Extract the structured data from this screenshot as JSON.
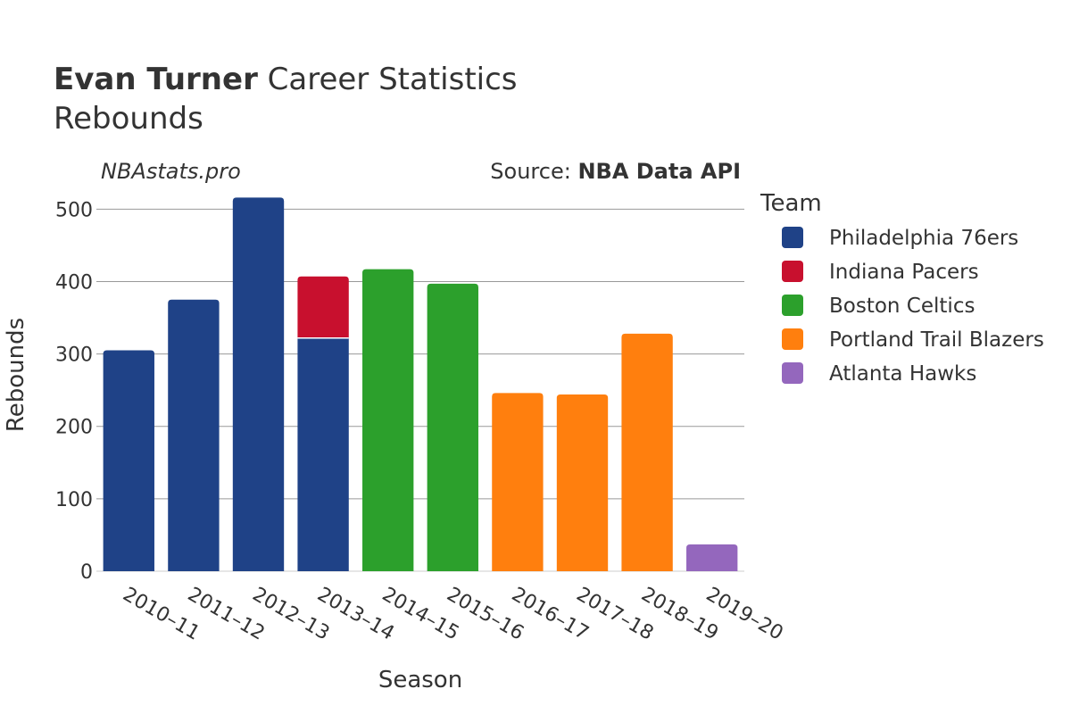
{
  "header": {
    "title_bold": "Evan Turner",
    "title_rest": " Career Statistics",
    "subtitle": "Rebounds",
    "watermark": "NBAstats.pro",
    "source_prefix": "Source: ",
    "source_name": "NBA Data API"
  },
  "legend": {
    "title": "Team"
  },
  "chart_data": {
    "type": "bar",
    "stacked": true,
    "categories": [
      "2010–11",
      "2011–12",
      "2012–13",
      "2013–14",
      "2014–15",
      "2015–16",
      "2016–17",
      "2017–18",
      "2018–19",
      "2019–20"
    ],
    "series": [
      {
        "name": "Philadelphia 76ers",
        "color": "#1f4287",
        "values": [
          305,
          375,
          516,
          322,
          0,
          0,
          0,
          0,
          0,
          0
        ]
      },
      {
        "name": "Indiana Pacers",
        "color": "#c8102e",
        "values": [
          0,
          0,
          0,
          85,
          0,
          0,
          0,
          0,
          0,
          0
        ]
      },
      {
        "name": "Boston Celtics",
        "color": "#2ca02c",
        "values": [
          0,
          0,
          0,
          0,
          417,
          397,
          0,
          0,
          0,
          0
        ]
      },
      {
        "name": "Portland Trail Blazers",
        "color": "#ff7f0e",
        "values": [
          0,
          0,
          0,
          0,
          0,
          0,
          246,
          244,
          328,
          0
        ]
      },
      {
        "name": "Atlanta Hawks",
        "color": "#9467bd",
        "values": [
          0,
          0,
          0,
          0,
          0,
          0,
          0,
          0,
          0,
          37
        ]
      }
    ],
    "xlabel": "Season",
    "ylabel": "Rebounds",
    "ylim": [
      0,
      530
    ],
    "yticks": [
      0,
      100,
      200,
      300,
      400,
      500
    ],
    "grid": true,
    "legend_position": "right"
  }
}
